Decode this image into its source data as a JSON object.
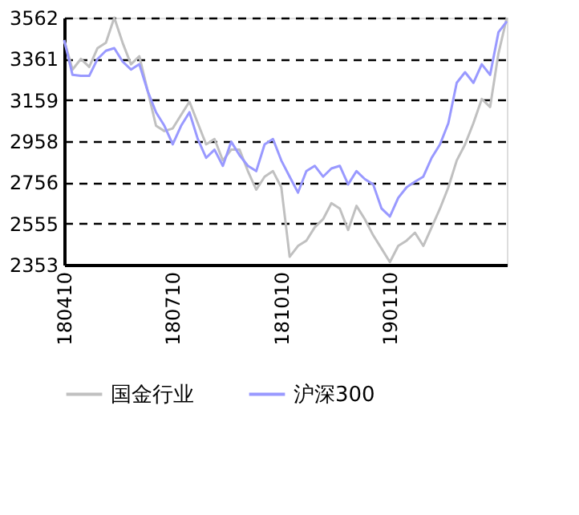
{
  "chart_data": {
    "type": "line",
    "categories": [
      "180410",
      null,
      null,
      null,
      null,
      null,
      null,
      null,
      null,
      null,
      null,
      null,
      null,
      "180710",
      null,
      null,
      null,
      null,
      null,
      null,
      null,
      null,
      null,
      null,
      null,
      null,
      "181010",
      null,
      null,
      null,
      null,
      null,
      null,
      null,
      null,
      null,
      null,
      null,
      null,
      "190110",
      null,
      null,
      null,
      null,
      null,
      null,
      null,
      null,
      null,
      null,
      null,
      null,
      null,
      null
    ],
    "series": [
      {
        "name": "国金行业",
        "color": "#c0c0c0",
        "values": [
          3452,
          3308,
          3360,
          3321,
          3413,
          3439,
          3562,
          3439,
          3334,
          3373,
          3203,
          3033,
          3007,
          3020,
          3086,
          3151,
          3046,
          2942,
          2968,
          2863,
          2916,
          2916,
          2811,
          2720,
          2784,
          2811,
          2732,
          2392,
          2445,
          2471,
          2536,
          2576,
          2654,
          2628,
          2523,
          2641,
          2576,
          2497,
          2432,
          2366,
          2445,
          2471,
          2510,
          2445,
          2536,
          2628,
          2732,
          2863,
          2942,
          3046,
          3164,
          3125,
          3387,
          3562
        ]
      },
      {
        "name": "沪深300",
        "color": "#9999ff",
        "values": [
          3452,
          3282,
          3277,
          3277,
          3360,
          3400,
          3413,
          3347,
          3308,
          3334,
          3203,
          3099,
          3033,
          2942,
          3033,
          3099,
          2968,
          2876,
          2916,
          2837,
          2955,
          2889,
          2837,
          2811,
          2942,
          2968,
          2863,
          2784,
          2706,
          2811,
          2837,
          2784,
          2824,
          2837,
          2746,
          2811,
          2772,
          2746,
          2628,
          2589,
          2680,
          2732,
          2759,
          2784,
          2876,
          2942,
          3046,
          3243,
          3295,
          3243,
          3334,
          3282,
          3491,
          3544
        ]
      }
    ],
    "ylim": [
      2353,
      3562
    ],
    "yticks": [
      2353,
      2555,
      2756,
      2958,
      3159,
      3361,
      3562
    ],
    "grid": "y",
    "legend": "bottom",
    "line_style": "solid",
    "marker": "none"
  }
}
